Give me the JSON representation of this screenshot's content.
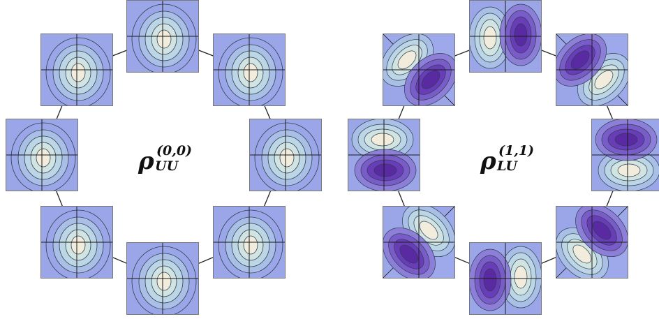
{
  "panels": [
    {
      "id": "uu",
      "label": {
        "symbol": "ρ",
        "superscript": "(0,0)",
        "subscript": "UU"
      },
      "pattern": "monopole"
    },
    {
      "id": "lu",
      "label": {
        "symbol": "ρ",
        "superscript": "(1,1)",
        "subscript": "LU"
      },
      "pattern": "dipole"
    }
  ],
  "colors": {
    "background": "#9aa6e8",
    "levels": [
      "#9aa6e8",
      "#a9bfe6",
      "#bcd6e6",
      "#d2e4e2",
      "#f2ecdc"
    ],
    "negative_levels": [
      "#9aa6e8",
      "#8d7fd8",
      "#7a5cc9",
      "#6a3db8",
      "#5a2aa3"
    ],
    "contour": "#2c3e50",
    "frame": "#777777",
    "axis": "#1a1a1a",
    "connector": "#222222"
  }
}
